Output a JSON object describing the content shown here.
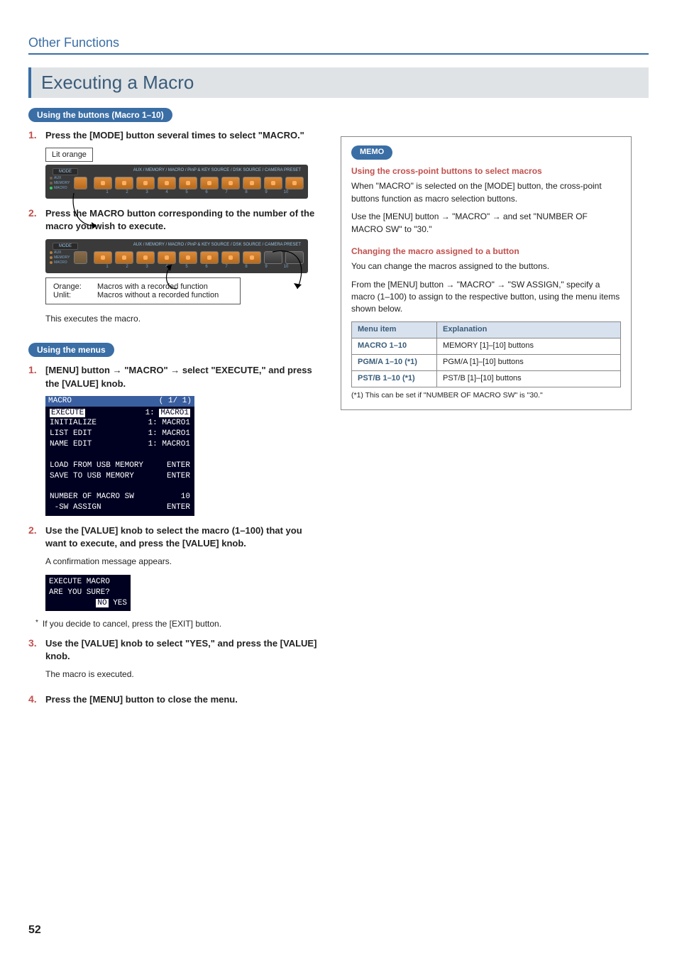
{
  "page": {
    "section": "Other Functions",
    "heading": "Executing a Macro",
    "pageNumber": "52"
  },
  "buttons_section": {
    "pill": "Using the buttons (Macro 1–10)",
    "step1": {
      "num": "1.",
      "text": "Press the [MODE] button several times to select \"MACRO.\""
    },
    "lit_orange": "Lit orange",
    "strip_header_mode": "MODE",
    "strip_header_labels": "AUX / MEMORY / MACRO / PinP & KEY SOURCE / DSK SOURCE / CAMERA PRESET",
    "leds": {
      "aux": "AUX",
      "memory": "MEMORY",
      "macro": "MACRO"
    },
    "btn_numbers": [
      "1",
      "2",
      "3",
      "4",
      "5",
      "6",
      "7",
      "8",
      "9",
      "10"
    ],
    "step2": {
      "num": "2.",
      "text": "Press the MACRO button corresponding to the number of the macro you wish to execute."
    },
    "legend": {
      "orange_label": "Orange:",
      "orange_text": "Macros with a recorded function",
      "unlit_label": "Unlit:",
      "unlit_text": "Macros without a recorded function"
    },
    "exec_note": "This executes the macro."
  },
  "menus_section": {
    "pill": "Using the menus",
    "step1": {
      "num": "1.",
      "text": "[MENU] button → \"MACRO\" → select \"EXECUTE,\" and press the [VALUE] knob."
    },
    "screen": {
      "title": "MACRO",
      "page": "( 1/ 1)",
      "rows": [
        {
          "l": "EXECUTE",
          "m": "1:",
          "r": "MACRO1",
          "hl": true
        },
        {
          "l": "INITIALIZE",
          "m": "1:",
          "r": "MACRO1"
        },
        {
          "l": "LIST EDIT",
          "m": "1:",
          "r": "MACRO1"
        },
        {
          "l": "NAME EDIT",
          "m": "1:",
          "r": "MACRO1"
        },
        {
          "spacer": true
        },
        {
          "l": "LOAD FROM USB MEMORY",
          "m": "",
          "r": "ENTER"
        },
        {
          "l": "SAVE TO USB MEMORY",
          "m": "",
          "r": "ENTER"
        },
        {
          "spacer": true
        },
        {
          "l": "NUMBER OF MACRO SW",
          "m": "",
          "r": "10"
        },
        {
          "l": " -SW ASSIGN",
          "m": "",
          "r": "ENTER"
        }
      ]
    },
    "step2": {
      "num": "2.",
      "text": "Use the [VALUE] knob to select the macro (1–100) that you want to execute, and press the [VALUE] knob."
    },
    "step2_sub": "A confirmation message appears.",
    "confirm": {
      "line1": "EXECUTE MACRO",
      "line2": "ARE YOU SURE?",
      "no": "NO",
      "yes": "YES"
    },
    "cancel_note": "If you decide to cancel, press the [EXIT] button.",
    "step3": {
      "num": "3.",
      "text": "Use the [VALUE] knob to select \"YES,\" and press the [VALUE] knob."
    },
    "step3_sub": "The macro is executed.",
    "step4": {
      "num": "4.",
      "text": "Press the [MENU] button to close the menu."
    }
  },
  "memo": {
    "pill": "MEMO",
    "sub1": "Using the cross-point buttons to select macros",
    "p1": "When \"MACRO\" is selected on the [MODE] button, the cross-point buttons function as macro selection buttons.",
    "p2a": "Use the [MENU] button ",
    "p2b": " \"MACRO\" ",
    "p2c": " and set \"NUMBER OF MACRO SW\" to \"30.\"",
    "sub2": "Changing the macro assigned to a button",
    "p3": "You can change the macros assigned to the buttons.",
    "p4a": "From the [MENU] button ",
    "p4b": " \"MACRO\" ",
    "p4c": " \"SW ASSIGN,\" specify a macro (1–100) to assign to the respective button, using the menu items shown below.",
    "table": {
      "headers": [
        "Menu item",
        "Explanation"
      ],
      "rows": [
        [
          "MACRO 1–10",
          "MEMORY [1]–[10] buttons"
        ],
        [
          "PGM/A 1–10 (*1)",
          "PGM/A [1]–[10] buttons"
        ],
        [
          "PST/B 1–10 (*1)",
          "PST/B [1]–[10] buttons"
        ]
      ]
    },
    "footnote": "(*1) This can be set if \"NUMBER OF MACRO SW\" is \"30.\""
  },
  "colors": {
    "led_aux": "#b08040",
    "led_memory": "#b08040",
    "led_macro_on": "#30d060",
    "led_macro_off": "#b08040"
  }
}
